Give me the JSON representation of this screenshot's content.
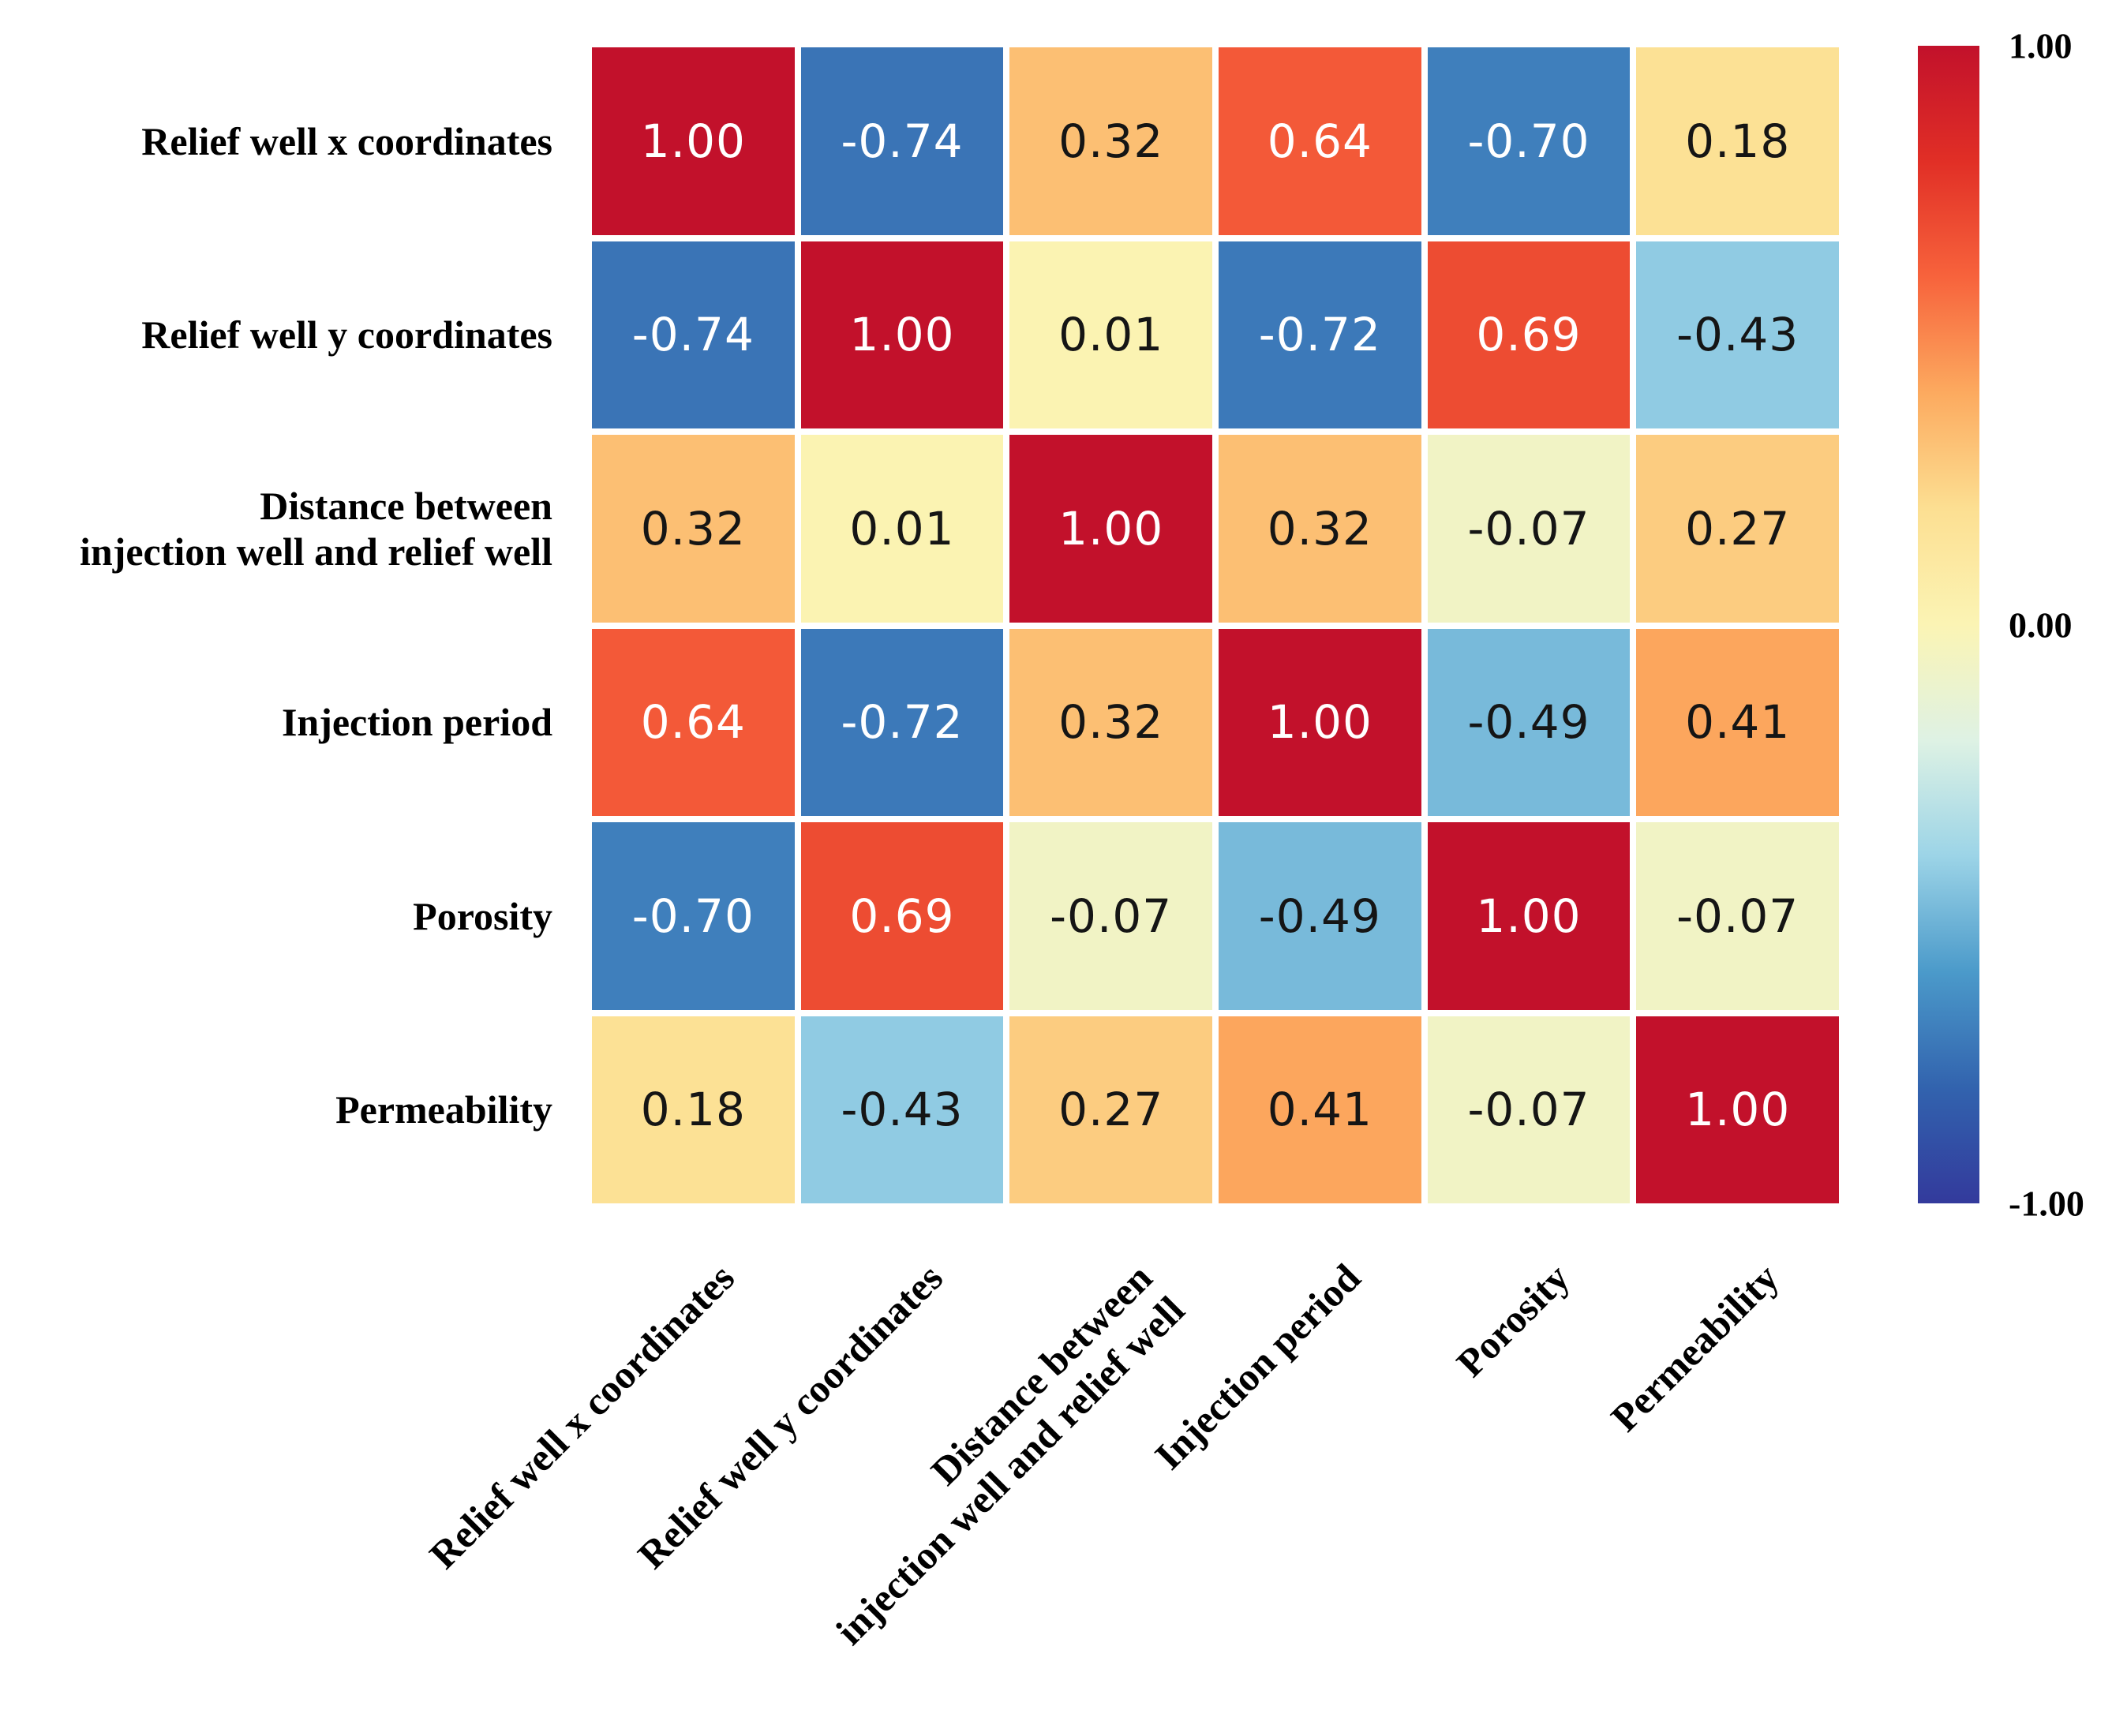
{
  "figure": {
    "background": "#ffffff",
    "kind": "correlation heatmap"
  },
  "chart_data": {
    "type": "heatmap",
    "title": "",
    "variables": [
      "Relief well x coordinates",
      "Relief well y coordinates",
      "Distance between injection well and relief well",
      "Injection period",
      "Porosity",
      "Permeability"
    ],
    "row_labels": [
      "Relief well x coordinates",
      "Relief well y coordinates",
      "Distance between\ninjection well and relief well",
      "Injection period",
      "Porosity",
      "Permeability"
    ],
    "col_labels": [
      "Relief well x coordinates",
      "Relief well y coordinates",
      "Distance between\ninjection well and relief well",
      "Injection period",
      "Porosity",
      "Permeability"
    ],
    "matrix": [
      [
        1.0,
        -0.74,
        0.32,
        0.64,
        -0.7,
        0.18
      ],
      [
        -0.74,
        1.0,
        0.01,
        -0.72,
        0.69,
        -0.43
      ],
      [
        0.32,
        0.01,
        1.0,
        0.32,
        -0.07,
        0.27
      ],
      [
        0.64,
        -0.72,
        0.32,
        1.0,
        -0.49,
        0.41
      ],
      [
        -0.7,
        0.69,
        -0.07,
        -0.49,
        1.0,
        -0.07
      ],
      [
        0.18,
        -0.43,
        0.27,
        0.41,
        -0.07,
        1.0
      ]
    ],
    "value_decimals": 2,
    "vmin": -1,
    "vmax": 1,
    "grid_gap_color": "#ffffff",
    "colormap_stops": [
      {
        "value": 1.0,
        "color": "#c2112b"
      },
      {
        "value": 0.8,
        "color": "#e12f26"
      },
      {
        "value": 0.6,
        "color": "#f7633c"
      },
      {
        "value": 0.4,
        "color": "#fcaa5f"
      },
      {
        "value": 0.2,
        "color": "#fcdf92"
      },
      {
        "value": 0.0,
        "color": "#fbf4b4"
      },
      {
        "value": -0.2,
        "color": "#def2e4"
      },
      {
        "value": -0.4,
        "color": "#9cd4e7"
      },
      {
        "value": -0.6,
        "color": "#4b9aca"
      },
      {
        "value": -0.8,
        "color": "#3263ae"
      },
      {
        "value": -1.0,
        "color": "#333a9c"
      }
    ],
    "annotation_colors": {
      "on_dark": "#ffffff",
      "on_light": "#151515"
    },
    "colorbar": {
      "ticks": [
        {
          "label": "1.00",
          "value": 1.0
        },
        {
          "label": "0.00",
          "value": 0.0
        },
        {
          "label": "-1.00",
          "value": -1.0
        }
      ]
    },
    "legend_position": "right",
    "grid": false
  }
}
